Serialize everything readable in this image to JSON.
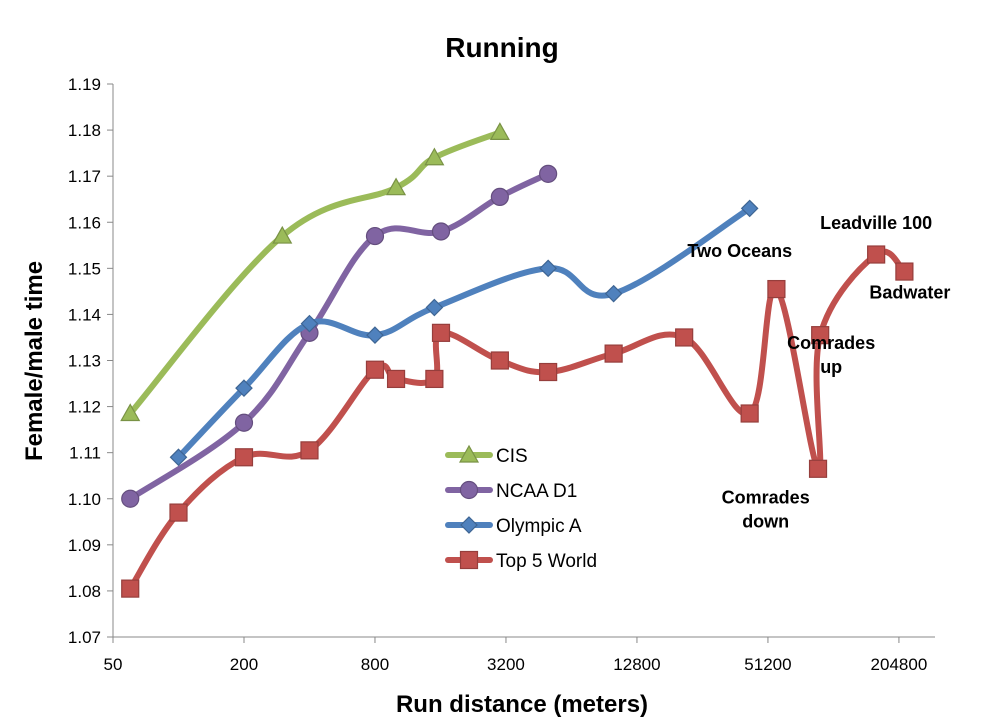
{
  "chart_data": {
    "type": "line",
    "title": "Running",
    "xlabel": "Run distance (meters)",
    "ylabel": "Female/male time",
    "x_scale": "log2",
    "xlim": [
      50,
      300000
    ],
    "ylim": [
      1.07,
      1.19
    ],
    "x_ticks": [
      "50",
      "200",
      "800",
      "3200",
      "12800",
      "51200",
      "204800"
    ],
    "y_ticks": [
      "1.07",
      "1.08",
      "1.09",
      "1.10",
      "1.11",
      "1.12",
      "1.13",
      "1.14",
      "1.15",
      "1.16",
      "1.17",
      "1.18",
      "1.19"
    ],
    "grid": false,
    "legend_position": "center",
    "series": [
      {
        "name": "CIS",
        "color": "#9bbb59",
        "marker": "triangle",
        "x": [
          60,
          300,
          1000,
          1500,
          3000
        ],
        "y": [
          1.1185,
          1.157,
          1.1675,
          1.174,
          1.1795
        ]
      },
      {
        "name": "NCAA D1",
        "color": "#8064a2",
        "marker": "circle",
        "x": [
          60,
          200,
          400,
          800,
          1609,
          3000,
          5000
        ],
        "y": [
          1.1,
          1.1165,
          1.136,
          1.157,
          1.158,
          1.1655,
          1.1705
        ]
      },
      {
        "name": "Olympic A",
        "color": "#4f81bd",
        "marker": "diamond",
        "x": [
          100,
          200,
          400,
          800,
          1500,
          5000,
          10000,
          42195
        ],
        "y": [
          1.109,
          1.124,
          1.138,
          1.1355,
          1.1415,
          1.15,
          1.1445,
          1.163
        ]
      },
      {
        "name": "Top 5 World",
        "color": "#c0504d",
        "marker": "square",
        "x": [
          60,
          100,
          200,
          400,
          800,
          1000,
          1500,
          1609,
          3000,
          5000,
          10000,
          21097,
          42195,
          56000,
          87000,
          89000,
          160934,
          217000
        ],
        "y": [
          1.0805,
          1.097,
          1.109,
          1.1105,
          1.128,
          1.126,
          1.126,
          1.136,
          1.13,
          1.1275,
          1.1315,
          1.135,
          1.1185,
          1.1455,
          1.1065,
          1.1355,
          1.153,
          1.1493
        ]
      }
    ],
    "annotations": [
      {
        "lines": [
          "Leadville 100"
        ],
        "x": 160934,
        "y": 1.1585
      },
      {
        "lines": [
          "Two Oceans"
        ],
        "x": 38000,
        "y": 1.1525
      },
      {
        "lines": [
          "Badwater"
        ],
        "x": 230000,
        "y": 1.1435
      },
      {
        "lines": [
          "Comrades",
          "up"
        ],
        "x": 100000,
        "y": 1.1325
      },
      {
        "lines": [
          "Comrades",
          "down"
        ],
        "x": 50000,
        "y": 1.099
      }
    ]
  }
}
